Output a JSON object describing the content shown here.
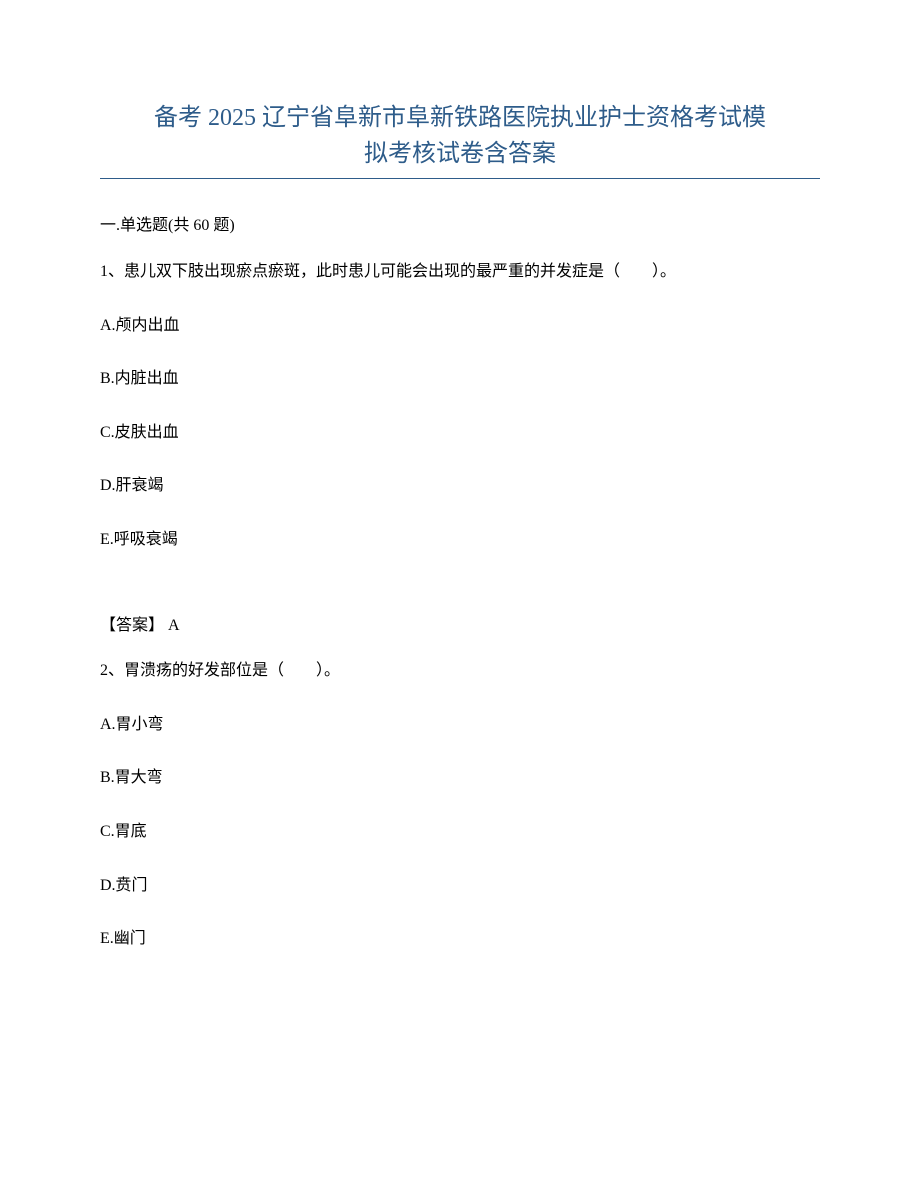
{
  "title_line1": "备考 2025 辽宁省阜新市阜新铁路医院执业护士资格考试模",
  "title_line2": "拟考核试卷含答案",
  "section_header": "一.单选题(共 60 题)",
  "questions": [
    {
      "text": "1、患儿双下肢出现瘀点瘀斑，此时患儿可能会出现的最严重的并发症是（　　）。",
      "options": {
        "A": "A.颅内出血",
        "B": "B.内脏出血",
        "C": "C.皮肤出血",
        "D": "D.肝衰竭",
        "E": "E.呼吸衰竭"
      },
      "answer": "【答案】 A"
    },
    {
      "text": "2、胃溃疡的好发部位是（　　）。",
      "options": {
        "A": "A.胃小弯",
        "B": "B.胃大弯",
        "C": "C.胃底",
        "D": "D.贲门",
        "E": "E.幽门"
      }
    }
  ],
  "colors": {
    "title_color": "#2e5c8a",
    "text_color": "#000000",
    "background": "#ffffff",
    "divider": "#2e5c8a"
  },
  "typography": {
    "title_fontsize": 24,
    "body_fontsize": 16,
    "font_family": "SimSun"
  }
}
